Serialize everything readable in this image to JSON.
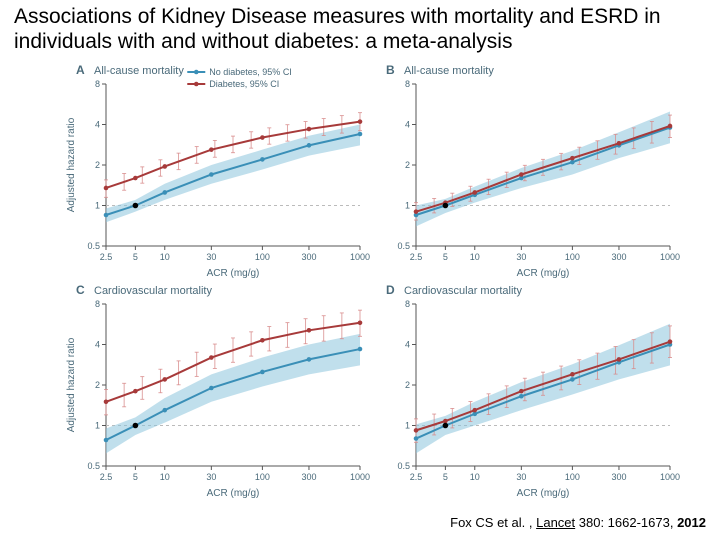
{
  "title": "Associations of Kidney Disease measures with mortality and ESRD in individuals with and without diabetes: a meta-analysis",
  "citation_author": "Fox CS et al. , ",
  "citation_journal": "Lancet",
  "citation_vol": " 380: 1662-1673, ",
  "citation_year": "2012",
  "legend": {
    "no_diabetes": "No diabetes, 95% CI",
    "diabetes": "Diabetes, 95% CI"
  },
  "colors": {
    "no_diabetes_line": "#3a8fb7",
    "no_diabetes_ci": "#8cc5dd",
    "diabetes_line": "#a73a3a",
    "diabetes_ci": "#d88a8a",
    "axis": "#555555",
    "grid": "#bbbbbb",
    "background": "#ffffff",
    "title_text": "#4a6a7a",
    "axis_text": "#4a6a7a"
  },
  "panels": {
    "A": {
      "label": "A",
      "subtitle": "All-cause mortality",
      "xlabel": "ACR (mg/g)",
      "ylabel": "Adjusted hazard ratio",
      "xscale": "log",
      "yscale": "log",
      "xticks": [
        2.5,
        5,
        10,
        30,
        100,
        300,
        1000
      ],
      "yticks": [
        0.5,
        1,
        2,
        4,
        8
      ],
      "xlim": [
        2.5,
        1000
      ],
      "ylim": [
        0.5,
        8
      ],
      "series": {
        "no_diabetes": {
          "x": [
            2.5,
            5,
            10,
            30,
            100,
            300,
            1000
          ],
          "y": [
            0.85,
            1.0,
            1.25,
            1.7,
            2.2,
            2.8,
            3.4
          ],
          "ci_lo": [
            0.75,
            0.9,
            1.1,
            1.45,
            1.85,
            2.35,
            2.8
          ],
          "ci_hi": [
            0.95,
            1.1,
            1.45,
            2.0,
            2.6,
            3.3,
            4.0
          ]
        },
        "diabetes": {
          "x": [
            2.5,
            5,
            10,
            30,
            100,
            300,
            1000
          ],
          "y": [
            1.35,
            1.6,
            1.95,
            2.6,
            3.2,
            3.7,
            4.2
          ],
          "ci_lo": [
            1.15,
            1.4,
            1.7,
            2.25,
            2.8,
            3.2,
            3.6
          ],
          "ci_hi": [
            1.55,
            1.85,
            2.25,
            3.0,
            3.7,
            4.25,
            4.9
          ]
        }
      }
    },
    "B": {
      "label": "B",
      "subtitle": "All-cause mortality",
      "xlabel": "ACR (mg/g)",
      "ylabel": "",
      "xscale": "log",
      "yscale": "log",
      "xticks": [
        2.5,
        5,
        10,
        30,
        100,
        300,
        1000
      ],
      "yticks": [
        0.5,
        1,
        2,
        4,
        8
      ],
      "xlim": [
        2.5,
        1000
      ],
      "ylim": [
        0.5,
        8
      ],
      "series": {
        "no_diabetes": {
          "x": [
            2.5,
            5,
            10,
            30,
            100,
            300,
            1000
          ],
          "y": [
            0.85,
            1.0,
            1.2,
            1.6,
            2.1,
            2.8,
            3.8
          ],
          "ci_lo": [
            0.7,
            0.88,
            1.05,
            1.35,
            1.7,
            2.25,
            2.9
          ],
          "ci_hi": [
            1.0,
            1.12,
            1.38,
            1.9,
            2.55,
            3.5,
            5.0
          ]
        },
        "diabetes": {
          "x": [
            2.5,
            5,
            10,
            30,
            100,
            300,
            1000
          ],
          "y": [
            0.9,
            1.05,
            1.25,
            1.7,
            2.25,
            2.9,
            3.9
          ],
          "ci_lo": [
            0.78,
            0.95,
            1.1,
            1.5,
            1.95,
            2.45,
            3.2
          ],
          "ci_hi": [
            1.05,
            1.18,
            1.43,
            1.95,
            2.6,
            3.45,
            4.7
          ]
        }
      }
    },
    "C": {
      "label": "C",
      "subtitle": "Cardiovascular mortality",
      "xlabel": "ACR (mg/g)",
      "ylabel": "Adjusted hazard ratio",
      "xscale": "log",
      "yscale": "log",
      "xticks": [
        2.5,
        5,
        10,
        30,
        100,
        300,
        1000
      ],
      "yticks": [
        0.5,
        1,
        2,
        4,
        8
      ],
      "xlim": [
        2.5,
        1000
      ],
      "ylim": [
        0.5,
        8
      ],
      "series": {
        "no_diabetes": {
          "x": [
            2.5,
            5,
            10,
            30,
            100,
            300,
            1000
          ],
          "y": [
            0.78,
            1.0,
            1.3,
            1.9,
            2.5,
            3.1,
            3.7
          ],
          "ci_lo": [
            0.62,
            0.85,
            1.05,
            1.5,
            1.95,
            2.4,
            2.8
          ],
          "ci_hi": [
            0.95,
            1.15,
            1.6,
            2.4,
            3.2,
            4.0,
            4.8
          ]
        },
        "diabetes": {
          "x": [
            2.5,
            5,
            10,
            30,
            100,
            300,
            1000
          ],
          "y": [
            1.5,
            1.8,
            2.2,
            3.2,
            4.3,
            5.1,
            5.8
          ],
          "ci_lo": [
            1.2,
            1.5,
            1.8,
            2.6,
            3.5,
            4.1,
            4.6
          ],
          "ci_hi": [
            1.85,
            2.2,
            2.7,
            3.95,
            5.3,
            6.3,
            7.2
          ]
        }
      }
    },
    "D": {
      "label": "D",
      "subtitle": "Cardiovascular mortality",
      "xlabel": "ACR (mg/g)",
      "ylabel": "",
      "xscale": "log",
      "yscale": "log",
      "xticks": [
        2.5,
        5,
        10,
        30,
        100,
        300,
        1000
      ],
      "yticks": [
        0.5,
        1,
        2,
        4,
        8
      ],
      "xlim": [
        2.5,
        1000
      ],
      "ylim": [
        0.5,
        8
      ],
      "series": {
        "no_diabetes": {
          "x": [
            2.5,
            5,
            10,
            30,
            100,
            300,
            1000
          ],
          "y": [
            0.8,
            1.0,
            1.22,
            1.65,
            2.2,
            2.95,
            4.0
          ],
          "ci_lo": [
            0.62,
            0.85,
            1.0,
            1.3,
            1.7,
            2.2,
            2.8
          ],
          "ci_hi": [
            1.02,
            1.18,
            1.5,
            2.1,
            2.85,
            3.95,
            5.7
          ]
        },
        "diabetes": {
          "x": [
            2.5,
            5,
            10,
            30,
            100,
            300,
            1000
          ],
          "y": [
            0.92,
            1.08,
            1.3,
            1.8,
            2.4,
            3.1,
            4.2
          ],
          "ci_lo": [
            0.75,
            0.92,
            1.1,
            1.5,
            1.95,
            2.45,
            3.2
          ],
          "ci_hi": [
            1.12,
            1.28,
            1.55,
            2.2,
            2.95,
            3.95,
            5.5
          ]
        }
      }
    }
  }
}
